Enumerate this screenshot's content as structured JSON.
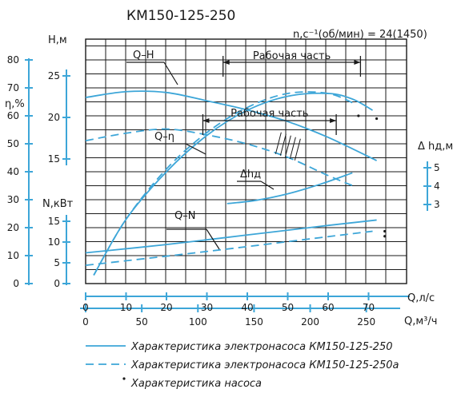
{
  "chart_data": {
    "type": "line",
    "title": "КМ150-125-250",
    "speed_label": "n,с⁻¹(об/мин) = 24(1450)",
    "operating_range_label": "Рабочая часть",
    "curve_labels": {
      "qh": "Q–H",
      "qeta": "Q–η",
      "qn": "Q–N",
      "npsh": "Δhд"
    },
    "colors": {
      "curve": "#3da6d8",
      "grid": "#1a1a1a",
      "text": "#1a1a1a"
    },
    "x_axis": {
      "label_ls": "Q,л/с",
      "ticks_ls": [
        0,
        10,
        20,
        30,
        40,
        50,
        60,
        70
      ],
      "range_ls": [
        0,
        76
      ],
      "label_m3h": "Q,м³/ч",
      "ticks_m3h": [
        0,
        50,
        100,
        150,
        200,
        250
      ]
    },
    "y_axes": {
      "H": {
        "label": "H,м",
        "ticks": [
          15,
          20,
          25
        ]
      },
      "eta": {
        "label": "η,%",
        "ticks": [
          0,
          10,
          20,
          30,
          40,
          50,
          60,
          70,
          80
        ]
      },
      "N": {
        "label": "N,кВт",
        "ticks": [
          0,
          5,
          10,
          15
        ]
      },
      "dh": {
        "label": "Δ hд,м",
        "ticks": [
          3,
          4,
          5
        ]
      }
    },
    "series": [
      {
        "name": "Q-H (КМ150-125-250)",
        "style": "solid",
        "x": [
          0,
          10,
          20,
          30,
          40,
          50,
          60,
          72
        ],
        "y": [
          22.4,
          23.1,
          23.0,
          22.0,
          20.9,
          19.5,
          17.6,
          14.8
        ]
      },
      {
        "name": "Q-H (КМ150-125-250а)",
        "style": "dashed",
        "x": [
          0,
          10,
          20,
          30,
          40,
          50,
          60,
          66
        ],
        "y": [
          17.2,
          18.1,
          18.6,
          17.9,
          16.8,
          15.2,
          13.0,
          11.8
        ]
      },
      {
        "name": "Q-η (КМ150-125-250)",
        "style": "solid",
        "x": [
          2,
          10,
          20,
          30,
          40,
          50,
          60,
          66,
          71
        ],
        "y": [
          3,
          23,
          40,
          53,
          62,
          67,
          68,
          66,
          62
        ]
      },
      {
        "name": "Q-η (КМ150-125-250а)",
        "style": "dashed",
        "x": [
          2,
          10,
          20,
          30,
          40,
          50,
          60,
          67
        ],
        "y": [
          3,
          23,
          41,
          54,
          63,
          68,
          68,
          64
        ]
      },
      {
        "name": "Q-N (КМ150-125-250)",
        "style": "solid",
        "x": [
          0,
          20,
          40,
          60,
          72
        ],
        "y": [
          7.4,
          9.4,
          11.7,
          14.0,
          15.3
        ]
      },
      {
        "name": "Q-N (КМ150-125-250а)",
        "style": "dashed",
        "x": [
          0,
          20,
          40,
          60,
          71
        ],
        "y": [
          4.4,
          6.6,
          8.9,
          11.3,
          12.6
        ]
      },
      {
        "name": "Δhд",
        "style": "solid",
        "x": [
          35,
          42,
          50,
          58,
          66
        ],
        "y": [
          3.05,
          3.22,
          3.58,
          4.1,
          4.72
        ]
      }
    ],
    "operating_range_qh_ls": [
      34,
      68
    ],
    "operating_range_eta_ls": [
      29,
      62
    ]
  },
  "legend": [
    {
      "style": "solid",
      "text": "Характеристика электронасоса КМ150-125-250"
    },
    {
      "style": "dashed",
      "text": "Характеристика электронасоса КМ150-125-250а"
    },
    {
      "style": "dot",
      "text": "Характеристика насоса"
    }
  ]
}
